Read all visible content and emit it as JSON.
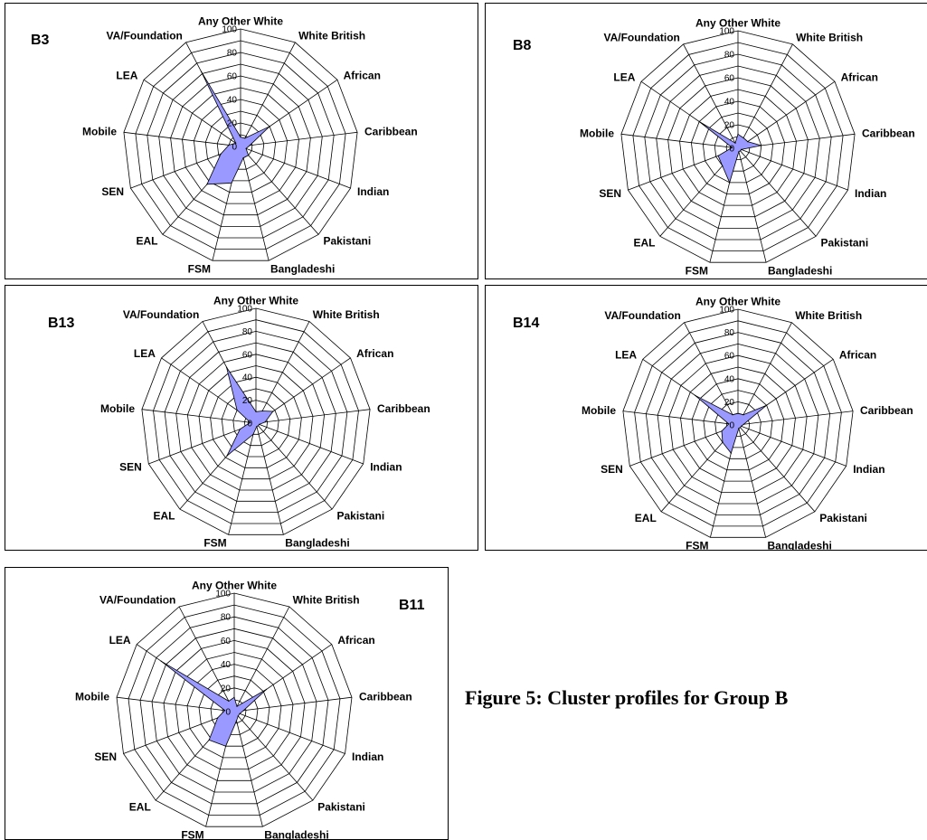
{
  "figure": {
    "caption": "Figure 5: Cluster profiles for Group B"
  },
  "colors": {
    "fill": "#9999ff",
    "stroke": "#000000",
    "grid": "#000000"
  },
  "chart_data": [
    {
      "type": "radar",
      "id": "B3",
      "categories": [
        "Any Other White",
        "White British",
        "African",
        "Caribbean",
        "Indian",
        "Pakistani",
        "Bangladeshi",
        "FSM",
        "EAL",
        "SEN",
        "Mobile",
        "LEA",
        "VA/Foundation"
      ],
      "r_ticks": [
        "0",
        "20",
        "40",
        "60",
        "80",
        "100"
      ],
      "rlim": [
        0,
        100
      ],
      "values": [
        8,
        8,
        30,
        8,
        5,
        10,
        10,
        32,
        43,
        18,
        10,
        5,
        72
      ]
    },
    {
      "type": "radar",
      "id": "B8",
      "categories": [
        "Any Other White",
        "White British",
        "African",
        "Caribbean",
        "Indian",
        "Pakistani",
        "Bangladeshi",
        "FSM",
        "EAL",
        "SEN",
        "Mobile",
        "LEA",
        "VA/Foundation"
      ],
      "r_ticks": [
        "0",
        "20",
        "40",
        "60",
        "80",
        "100"
      ],
      "rlim": [
        0,
        100
      ],
      "values": [
        12,
        10,
        10,
        20,
        3,
        3,
        3,
        30,
        20,
        18,
        5,
        40,
        5
      ]
    },
    {
      "type": "radar",
      "id": "B13",
      "categories": [
        "Any Other White",
        "White British",
        "African",
        "Caribbean",
        "Indian",
        "Pakistani",
        "Bangladeshi",
        "FSM",
        "EAL",
        "SEN",
        "Mobile",
        "LEA",
        "VA/Foundation"
      ],
      "r_ticks": [
        "0",
        "20",
        "40",
        "60",
        "80",
        "100"
      ],
      "rlim": [
        0,
        100
      ],
      "values": [
        10,
        12,
        18,
        8,
        3,
        3,
        3,
        10,
        38,
        15,
        5,
        20,
        55
      ]
    },
    {
      "type": "radar",
      "id": "B14",
      "categories": [
        "Any Other White",
        "White British",
        "African",
        "Caribbean",
        "Indian",
        "Pakistani",
        "Bangladeshi",
        "FSM",
        "EAL",
        "SEN",
        "Mobile",
        "LEA",
        "VA/Foundation"
      ],
      "r_ticks": [
        "0",
        "20",
        "40",
        "60",
        "80",
        "100"
      ],
      "rlim": [
        0,
        100
      ],
      "values": [
        10,
        10,
        30,
        5,
        3,
        3,
        3,
        25,
        20,
        15,
        8,
        45,
        10
      ]
    },
    {
      "type": "radar",
      "id": "B11",
      "categories": [
        "Any Other White",
        "White British",
        "African",
        "Caribbean",
        "Indian",
        "Pakistani",
        "Bangladeshi",
        "FSM",
        "EAL",
        "SEN",
        "Mobile",
        "LEA",
        "VA/Foundation"
      ],
      "r_ticks": [
        "0",
        "20",
        "40",
        "60",
        "80",
        "100"
      ],
      "rlim": [
        0,
        100
      ],
      "values": [
        12,
        5,
        33,
        8,
        5,
        5,
        8,
        30,
        32,
        15,
        8,
        75,
        10
      ]
    }
  ]
}
